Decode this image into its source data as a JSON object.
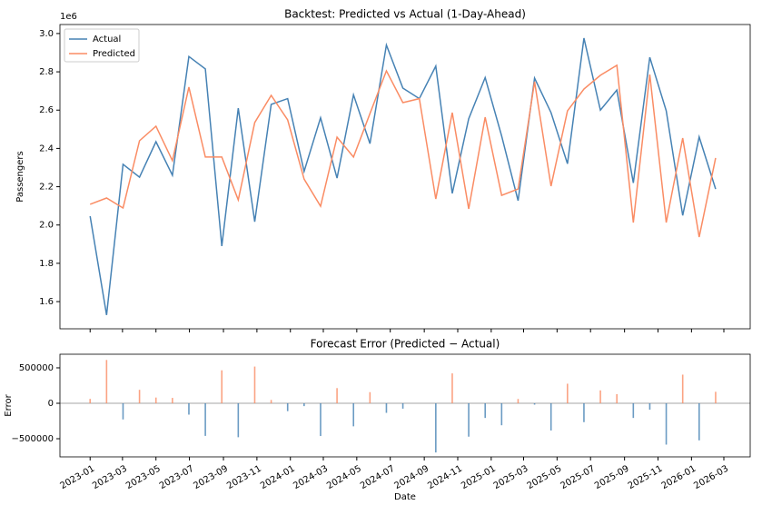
{
  "chart_data": [
    {
      "type": "line",
      "title": "Backtest: Predicted vs Actual (1-Day-Ahead)",
      "y_label": "Passengers",
      "y_offset": "1e6",
      "x": [
        19358,
        19388,
        19418,
        19448,
        19478,
        19508,
        19538,
        19568,
        19598,
        19628,
        19658,
        19688,
        19718,
        19748,
        19778,
        19808,
        19838,
        19868,
        19898,
        19928,
        19958,
        19988,
        20018,
        20048,
        20078,
        20108,
        20138,
        20168,
        20198,
        20228,
        20258,
        20288,
        20318,
        20348,
        20378,
        20408,
        20438,
        20468,
        20498
      ],
      "series": [
        {
          "name": "Actual",
          "color": "#4682b4",
          "values": [
            2.046,
            1.53,
            2.317,
            2.25,
            2.435,
            2.26,
            2.88,
            2.815,
            1.89,
            2.61,
            2.017,
            2.63,
            2.66,
            2.28,
            2.56,
            2.245,
            2.68,
            2.425,
            2.94,
            2.715,
            2.66,
            2.83,
            2.165,
            2.555,
            2.77,
            2.465,
            2.127,
            2.767,
            2.587,
            2.32,
            2.976,
            2.6,
            2.705,
            2.22,
            2.876,
            2.596,
            2.05,
            2.46,
            2.188
          ]
        },
        {
          "name": "Predicted",
          "color": "#fa8c64",
          "values": [
            2.108,
            2.141,
            2.089,
            2.44,
            2.516,
            2.336,
            2.72,
            2.355,
            2.355,
            2.131,
            2.535,
            2.677,
            2.549,
            2.24,
            2.098,
            2.459,
            2.355,
            2.582,
            2.805,
            2.639,
            2.66,
            2.136,
            2.587,
            2.084,
            2.563,
            2.155,
            2.188,
            2.748,
            2.203,
            2.596,
            2.71,
            2.782,
            2.834,
            2.013,
            2.786,
            2.013,
            2.454,
            1.937,
            2.35
          ]
        }
      ],
      "xlim": [
        19303,
        20561
      ],
      "ylim": [
        1.458,
        3.047
      ],
      "yticks": [
        1.6,
        1.8,
        {
          "value": 2,
          "label": "2.0"
        },
        2.2,
        2.4,
        2.6,
        2.8,
        {
          "value": 3,
          "label": "3.0"
        }
      ],
      "xticks": [
        19358,
        19417,
        19478,
        19539,
        19601,
        19662,
        19723,
        19783,
        19844,
        19905,
        19967,
        20028,
        20089,
        20148,
        20209,
        20270,
        20332,
        20393,
        20454,
        20513
      ],
      "legend": "upper left"
    },
    {
      "type": "bar",
      "title": "Forecast Error (Predicted − Actual)",
      "x_label": "Date",
      "y_label": "Error",
      "positive_color": "#fa8c64",
      "negative_color": "#4682b4",
      "x": [
        19358,
        19388,
        19418,
        19448,
        19478,
        19508,
        19538,
        19568,
        19598,
        19628,
        19658,
        19688,
        19718,
        19748,
        19778,
        19808,
        19838,
        19868,
        19898,
        19928,
        19958,
        19988,
        20018,
        20048,
        20078,
        20108,
        20138,
        20168,
        20198,
        20228,
        20258,
        20288,
        20318,
        20348,
        20378,
        20408,
        20438,
        20468,
        20498
      ],
      "values": [
        62000,
        611000,
        -228000,
        190000,
        81000,
        76000,
        -160000,
        -460000,
        465000,
        -479000,
        518000,
        47000,
        -111000,
        -40000,
        -462000,
        214000,
        -325000,
        157000,
        -135000,
        -76000,
        0,
        -694000,
        422000,
        -471000,
        -207000,
        -310000,
        61000,
        -19000,
        -384000,
        276000,
        -266000,
        182000,
        129000,
        -207000,
        -90000,
        -583000,
        404000,
        -523000,
        162000
      ],
      "xlim": [
        19303,
        20561
      ],
      "ylim": [
        -756000,
        692000
      ],
      "yticks": [
        {
          "value": -500000,
          "label": "−500000"
        },
        0,
        500000
      ],
      "xticks": [
        {
          "value": 19358,
          "label": "2023-01"
        },
        {
          "value": 19417,
          "label": "2023-03"
        },
        {
          "value": 19478,
          "label": "2023-05"
        },
        {
          "value": 19539,
          "label": "2023-07"
        },
        {
          "value": 19601,
          "label": "2023-09"
        },
        {
          "value": 19662,
          "label": "2023-11"
        },
        {
          "value": 19723,
          "label": "2024-01"
        },
        {
          "value": 19783,
          "label": "2024-03"
        },
        {
          "value": 19844,
          "label": "2024-05"
        },
        {
          "value": 19905,
          "label": "2024-07"
        },
        {
          "value": 19967,
          "label": "2024-09"
        },
        {
          "value": 20028,
          "label": "2024-11"
        },
        {
          "value": 20089,
          "label": "2025-01"
        },
        {
          "value": 20148,
          "label": "2025-03"
        },
        {
          "value": 20209,
          "label": "2025-05"
        },
        {
          "value": 20270,
          "label": "2025-07"
        },
        {
          "value": 20332,
          "label": "2025-09"
        },
        {
          "value": 20393,
          "label": "2025-11"
        },
        {
          "value": 20454,
          "label": "2026-01"
        },
        {
          "value": 20513,
          "label": "2026-03"
        }
      ],
      "zero_line": true
    }
  ]
}
